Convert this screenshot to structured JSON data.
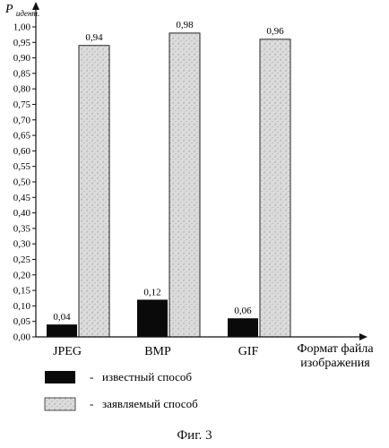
{
  "chart_data": {
    "type": "bar",
    "ylabel": "P",
    "ylabel_subscript": "идент.",
    "xlabel_line1": "Формат файла",
    "xlabel_line2": "изображения",
    "categories": [
      "JPEG",
      "BMP",
      "GIF"
    ],
    "ylim": [
      0,
      1.0
    ],
    "yticks": [
      "0,00",
      "0,05",
      "0,10",
      "0,15",
      "0,20",
      "0,25",
      "0,30",
      "0,35",
      "0,40",
      "0,45",
      "0,50",
      "0,55",
      "0,60",
      "0,65",
      "0,70",
      "0,75",
      "0,80",
      "0,85",
      "0,90",
      "0,95",
      "1,00"
    ],
    "series": [
      {
        "name": "известный способ",
        "values": [
          0.04,
          0.12,
          0.06
        ],
        "labels": [
          "0,04",
          "0,12",
          "0,06"
        ],
        "color": "#0a0a0a"
      },
      {
        "name": "заявляемый способ",
        "values": [
          0.94,
          0.98,
          0.96
        ],
        "labels": [
          "0,94",
          "0,98",
          "0,96"
        ],
        "color": "#d4d4d4"
      }
    ],
    "legend_placement": "bottom-left",
    "legend_dash": "-",
    "grid": false
  },
  "caption": "Фиг. 3"
}
